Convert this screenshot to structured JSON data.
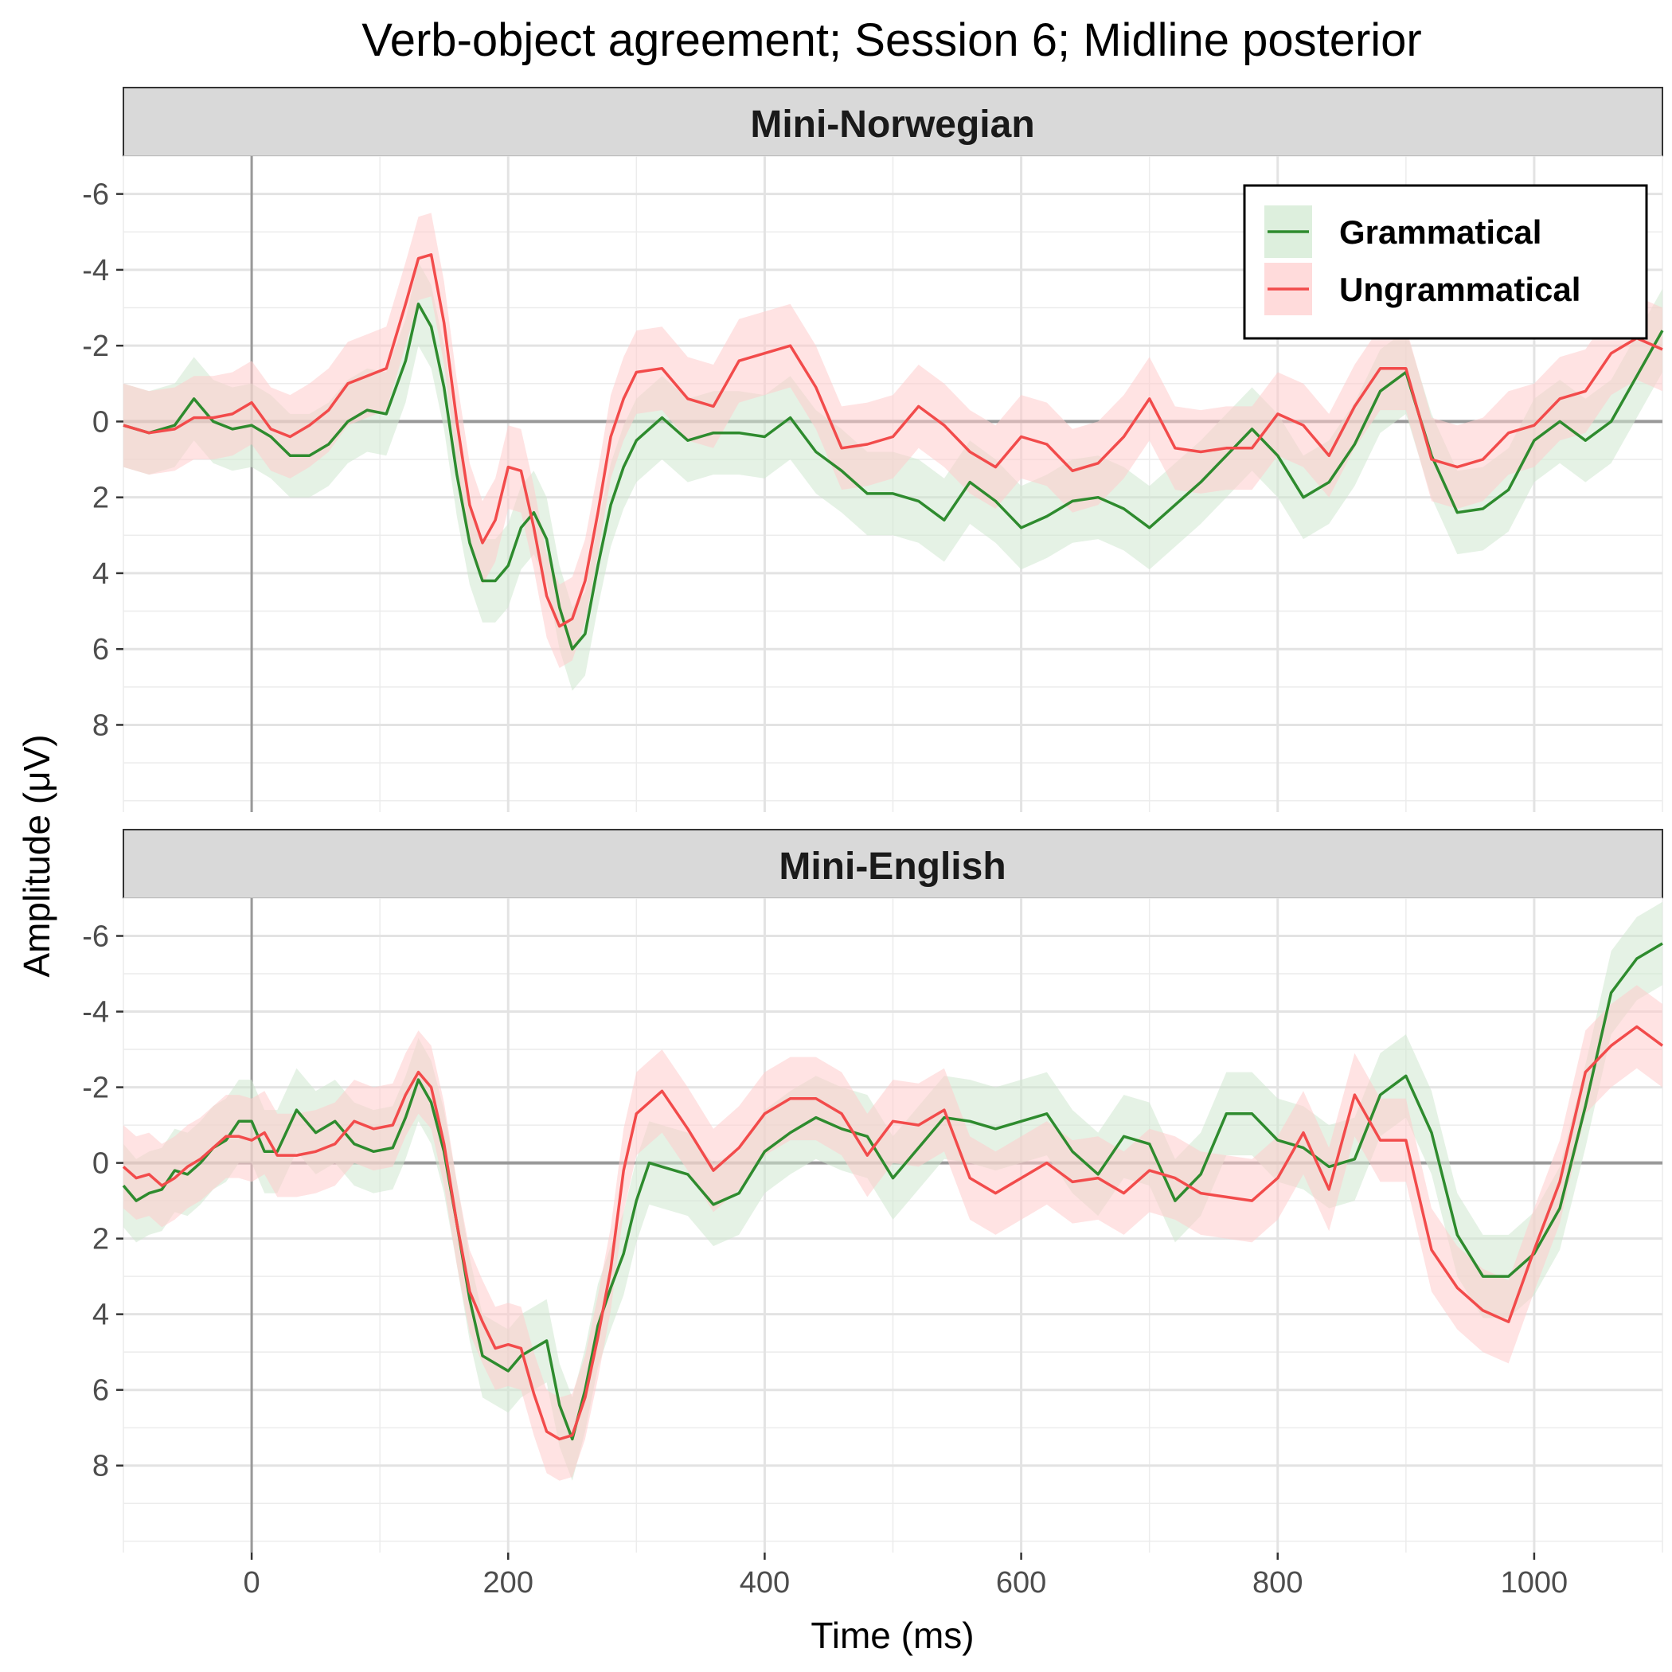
{
  "title": "Verb-object agreement; Session 6; Midline posterior",
  "xlabel": "Time (ms)",
  "ylabel": "Amplitude (μV)",
  "legend": {
    "position": "top-right",
    "items": [
      {
        "label": "Grammatical",
        "color": "#2e8b2e",
        "fill": "#cfe8cf"
      },
      {
        "label": "Ungrammatical",
        "color": "#f24b4b",
        "fill": "#ffcccc"
      }
    ]
  },
  "chart_data": {
    "type": "line",
    "grid": true,
    "y_reversed": true,
    "xlim": [
      -100,
      1100
    ],
    "ylim": [
      -7,
      10.3
    ],
    "x_ticks": [
      0,
      200,
      400,
      600,
      800,
      1000
    ],
    "x_tick_labels": [
      "0",
      "200",
      "400",
      "600",
      "800",
      "1000"
    ],
    "y_ticks": [
      -6,
      -4,
      -2,
      0,
      2,
      4,
      6,
      8
    ],
    "y_tick_labels": [
      "-6",
      "-4",
      "-2",
      "0",
      "2",
      "4",
      "6",
      "8"
    ],
    "band_halfwidth": 1.1,
    "panels": [
      {
        "label": "Mini-Norwegian",
        "series": [
          {
            "name": "Grammatical",
            "x": [
              -100,
              -80,
              -60,
              -45,
              -30,
              -15,
              0,
              15,
              30,
              45,
              60,
              75,
              90,
              105,
              120,
              130,
              140,
              150,
              160,
              170,
              180,
              190,
              200,
              210,
              220,
              230,
              240,
              250,
              260,
              270,
              280,
              290,
              300,
              320,
              340,
              360,
              380,
              400,
              420,
              440,
              460,
              480,
              500,
              520,
              540,
              560,
              580,
              600,
              620,
              640,
              660,
              680,
              700,
              720,
              740,
              760,
              780,
              800,
              820,
              840,
              860,
              880,
              900,
              920,
              940,
              960,
              980,
              1000,
              1020,
              1040,
              1060,
              1080,
              1100
            ],
            "y": [
              0.1,
              0.3,
              0.1,
              -0.6,
              0.0,
              0.2,
              0.1,
              0.4,
              0.9,
              0.9,
              0.6,
              0.0,
              -0.3,
              -0.2,
              -1.6,
              -3.1,
              -2.5,
              -0.9,
              1.4,
              3.2,
              4.2,
              4.2,
              3.8,
              2.8,
              2.4,
              3.1,
              4.9,
              6.0,
              5.6,
              3.8,
              2.2,
              1.2,
              0.5,
              -0.1,
              0.5,
              0.3,
              0.3,
              0.4,
              -0.1,
              0.8,
              1.3,
              1.9,
              1.9,
              2.1,
              2.6,
              1.6,
              2.1,
              2.8,
              2.5,
              2.1,
              2.0,
              2.3,
              2.8,
              2.2,
              1.6,
              0.9,
              0.2,
              0.9,
              2.0,
              1.6,
              0.6,
              -0.8,
              -1.3,
              0.9,
              2.4,
              2.3,
              1.8,
              0.5,
              0.0,
              0.5,
              0.0,
              -1.2,
              -2.4
            ]
          },
          {
            "name": "Ungrammatical",
            "x": [
              -100,
              -80,
              -60,
              -45,
              -30,
              -15,
              0,
              15,
              30,
              45,
              60,
              75,
              90,
              105,
              120,
              130,
              140,
              150,
              160,
              170,
              180,
              190,
              200,
              210,
              220,
              230,
              240,
              250,
              260,
              270,
              280,
              290,
              300,
              320,
              340,
              360,
              380,
              400,
              420,
              440,
              460,
              480,
              500,
              520,
              540,
              560,
              580,
              600,
              620,
              640,
              660,
              680,
              700,
              720,
              740,
              760,
              780,
              800,
              820,
              840,
              860,
              880,
              900,
              920,
              940,
              960,
              980,
              1000,
              1020,
              1040,
              1060,
              1080,
              1100
            ],
            "y": [
              0.1,
              0.3,
              0.2,
              -0.1,
              -0.1,
              -0.2,
              -0.5,
              0.2,
              0.4,
              0.1,
              -0.3,
              -1.0,
              -1.2,
              -1.4,
              -3.1,
              -4.3,
              -4.4,
              -2.6,
              0.0,
              2.2,
              3.2,
              2.6,
              1.2,
              1.3,
              2.8,
              4.6,
              5.4,
              5.2,
              4.2,
              2.4,
              0.4,
              -0.6,
              -1.3,
              -1.4,
              -0.6,
              -0.4,
              -1.6,
              -1.8,
              -2.0,
              -0.9,
              0.7,
              0.6,
              0.4,
              -0.4,
              0.1,
              0.8,
              1.2,
              0.4,
              0.6,
              1.3,
              1.1,
              0.4,
              -0.6,
              0.7,
              0.8,
              0.7,
              0.7,
              -0.2,
              0.1,
              0.9,
              -0.4,
              -1.4,
              -1.4,
              1.0,
              1.2,
              1.0,
              0.3,
              0.1,
              -0.6,
              -0.8,
              -1.8,
              -2.2,
              -1.9
            ]
          }
        ]
      },
      {
        "label": "Mini-English",
        "series": [
          {
            "name": "Grammatical",
            "x": [
              -100,
              -90,
              -80,
              -70,
              -60,
              -50,
              -40,
              -30,
              -20,
              -10,
              0,
              10,
              20,
              35,
              50,
              65,
              80,
              95,
              110,
              120,
              130,
              140,
              150,
              160,
              170,
              180,
              190,
              200,
              210,
              220,
              230,
              240,
              250,
              260,
              270,
              280,
              290,
              300,
              310,
              320,
              340,
              360,
              380,
              400,
              420,
              440,
              460,
              480,
              500,
              520,
              540,
              560,
              580,
              600,
              620,
              640,
              660,
              680,
              700,
              720,
              740,
              760,
              780,
              800,
              820,
              840,
              860,
              880,
              900,
              920,
              940,
              960,
              980,
              1000,
              1020,
              1040,
              1060,
              1080,
              1100
            ],
            "y": [
              0.6,
              1.0,
              0.8,
              0.7,
              0.2,
              0.3,
              0.0,
              -0.4,
              -0.6,
              -1.1,
              -1.1,
              -0.3,
              -0.3,
              -1.4,
              -0.8,
              -1.1,
              -0.5,
              -0.3,
              -0.4,
              -1.2,
              -2.2,
              -1.6,
              -0.3,
              1.6,
              3.6,
              5.1,
              5.3,
              5.5,
              5.1,
              4.9,
              4.7,
              6.4,
              7.3,
              6.0,
              4.3,
              3.3,
              2.4,
              1.0,
              0.0,
              0.1,
              0.3,
              1.1,
              0.8,
              -0.3,
              -0.8,
              -1.2,
              -0.9,
              -0.7,
              0.4,
              -0.4,
              -1.2,
              -1.1,
              -0.9,
              -1.1,
              -1.3,
              -0.3,
              0.3,
              -0.7,
              -0.5,
              1.0,
              0.3,
              -1.3,
              -1.3,
              -0.6,
              -0.4,
              0.1,
              -0.1,
              -1.8,
              -2.3,
              -0.8,
              1.9,
              3.0,
              3.0,
              2.4,
              1.2,
              -1.5,
              -4.5,
              -5.4,
              -5.8
            ]
          },
          {
            "name": "Ungrammatical",
            "x": [
              -100,
              -90,
              -80,
              -70,
              -60,
              -50,
              -40,
              -30,
              -20,
              -10,
              0,
              10,
              20,
              35,
              50,
              65,
              80,
              95,
              110,
              120,
              130,
              140,
              150,
              160,
              170,
              180,
              190,
              200,
              210,
              220,
              230,
              240,
              250,
              260,
              270,
              280,
              290,
              300,
              310,
              320,
              340,
              360,
              380,
              400,
              420,
              440,
              460,
              480,
              500,
              520,
              540,
              560,
              580,
              600,
              620,
              640,
              660,
              680,
              700,
              720,
              740,
              760,
              780,
              800,
              820,
              840,
              860,
              880,
              900,
              920,
              940,
              960,
              980,
              1000,
              1020,
              1040,
              1060,
              1080,
              1100
            ],
            "y": [
              0.1,
              0.4,
              0.3,
              0.6,
              0.4,
              0.1,
              -0.1,
              -0.4,
              -0.7,
              -0.7,
              -0.6,
              -0.8,
              -0.2,
              -0.2,
              -0.3,
              -0.5,
              -1.1,
              -0.9,
              -1.0,
              -1.8,
              -2.4,
              -2.0,
              -0.5,
              1.6,
              3.4,
              4.2,
              4.9,
              4.8,
              4.9,
              6.1,
              7.1,
              7.3,
              7.2,
              6.2,
              4.6,
              2.8,
              0.2,
              -1.3,
              -1.6,
              -1.9,
              -0.9,
              0.2,
              -0.4,
              -1.3,
              -1.7,
              -1.7,
              -1.3,
              -0.2,
              -1.1,
              -1.0,
              -1.4,
              0.4,
              0.8,
              0.4,
              0.0,
              0.5,
              0.4,
              0.8,
              0.2,
              0.4,
              0.8,
              0.9,
              1.0,
              0.4,
              -0.8,
              0.7,
              -1.8,
              -0.6,
              -0.6,
              2.3,
              3.3,
              3.9,
              4.2,
              2.3,
              0.5,
              -2.4,
              -3.1,
              -3.6,
              -3.1
            ]
          }
        ]
      }
    ]
  }
}
